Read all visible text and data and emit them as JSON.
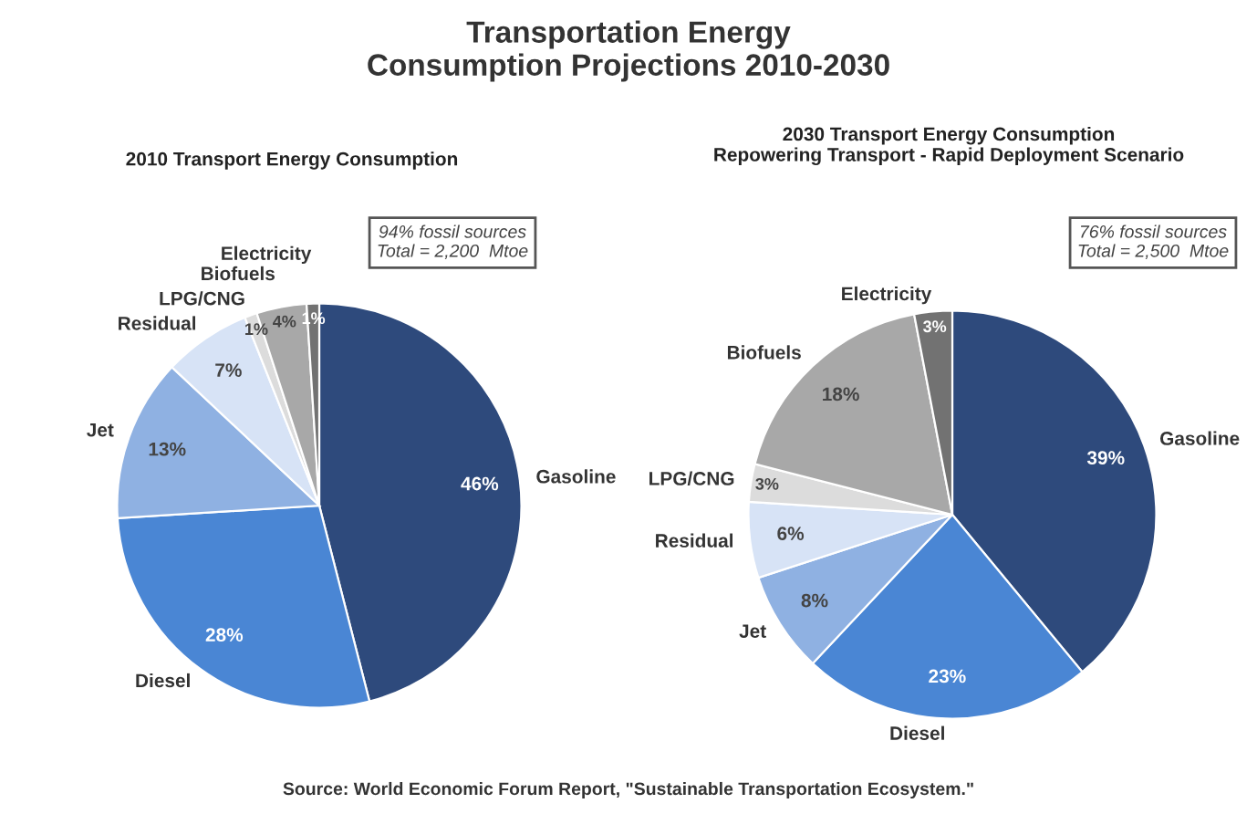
{
  "chart_data": [
    {
      "type": "pie",
      "title": "Transportation Energy\nConsumption Projections 2010-2030",
      "subtitle": "2010 Transport Energy Consumption",
      "categories": [
        "Gasoline",
        "Diesel",
        "Jet",
        "Residual",
        "LPG/CNG",
        "Biofuels",
        "Electricity"
      ],
      "values": [
        46,
        28,
        13,
        7,
        1,
        4,
        1
      ],
      "value_labels": [
        "46%",
        "28%",
        "13%",
        "7%",
        "1%",
        "4%",
        "1%"
      ],
      "colors": [
        "#2e4a7c",
        "#4a86d4",
        "#8fb1e2",
        "#d7e3f6",
        "#dcdcdc",
        "#a8a8a8",
        "#727272"
      ],
      "annotations": [
        "94% fossil sources\nTotal = 2,200  Mtoe"
      ]
    },
    {
      "type": "pie",
      "subtitle": "2030 Transport Energy Consumption\nRepowering Transport - Rapid Deployment Scenario",
      "categories": [
        "Gasoline",
        "Diesel",
        "Jet",
        "Residual",
        "LPG/CNG",
        "Biofuels",
        "Electricity"
      ],
      "values": [
        39,
        23,
        8,
        6,
        3,
        18,
        3
      ],
      "value_labels": [
        "39%",
        "23%",
        "8%",
        "6%",
        "3%",
        "18%",
        "3%"
      ],
      "colors": [
        "#2e4a7c",
        "#4a86d4",
        "#8fb1e2",
        "#d7e3f6",
        "#dcdcdc",
        "#a8a8a8",
        "#727272"
      ],
      "annotations": [
        "76% fossil sources\nTotal = 2,500  Mtoe",
        "Source: World Economic Forum Report, \"Sustainable Transportation Ecosystem.\""
      ]
    }
  ]
}
